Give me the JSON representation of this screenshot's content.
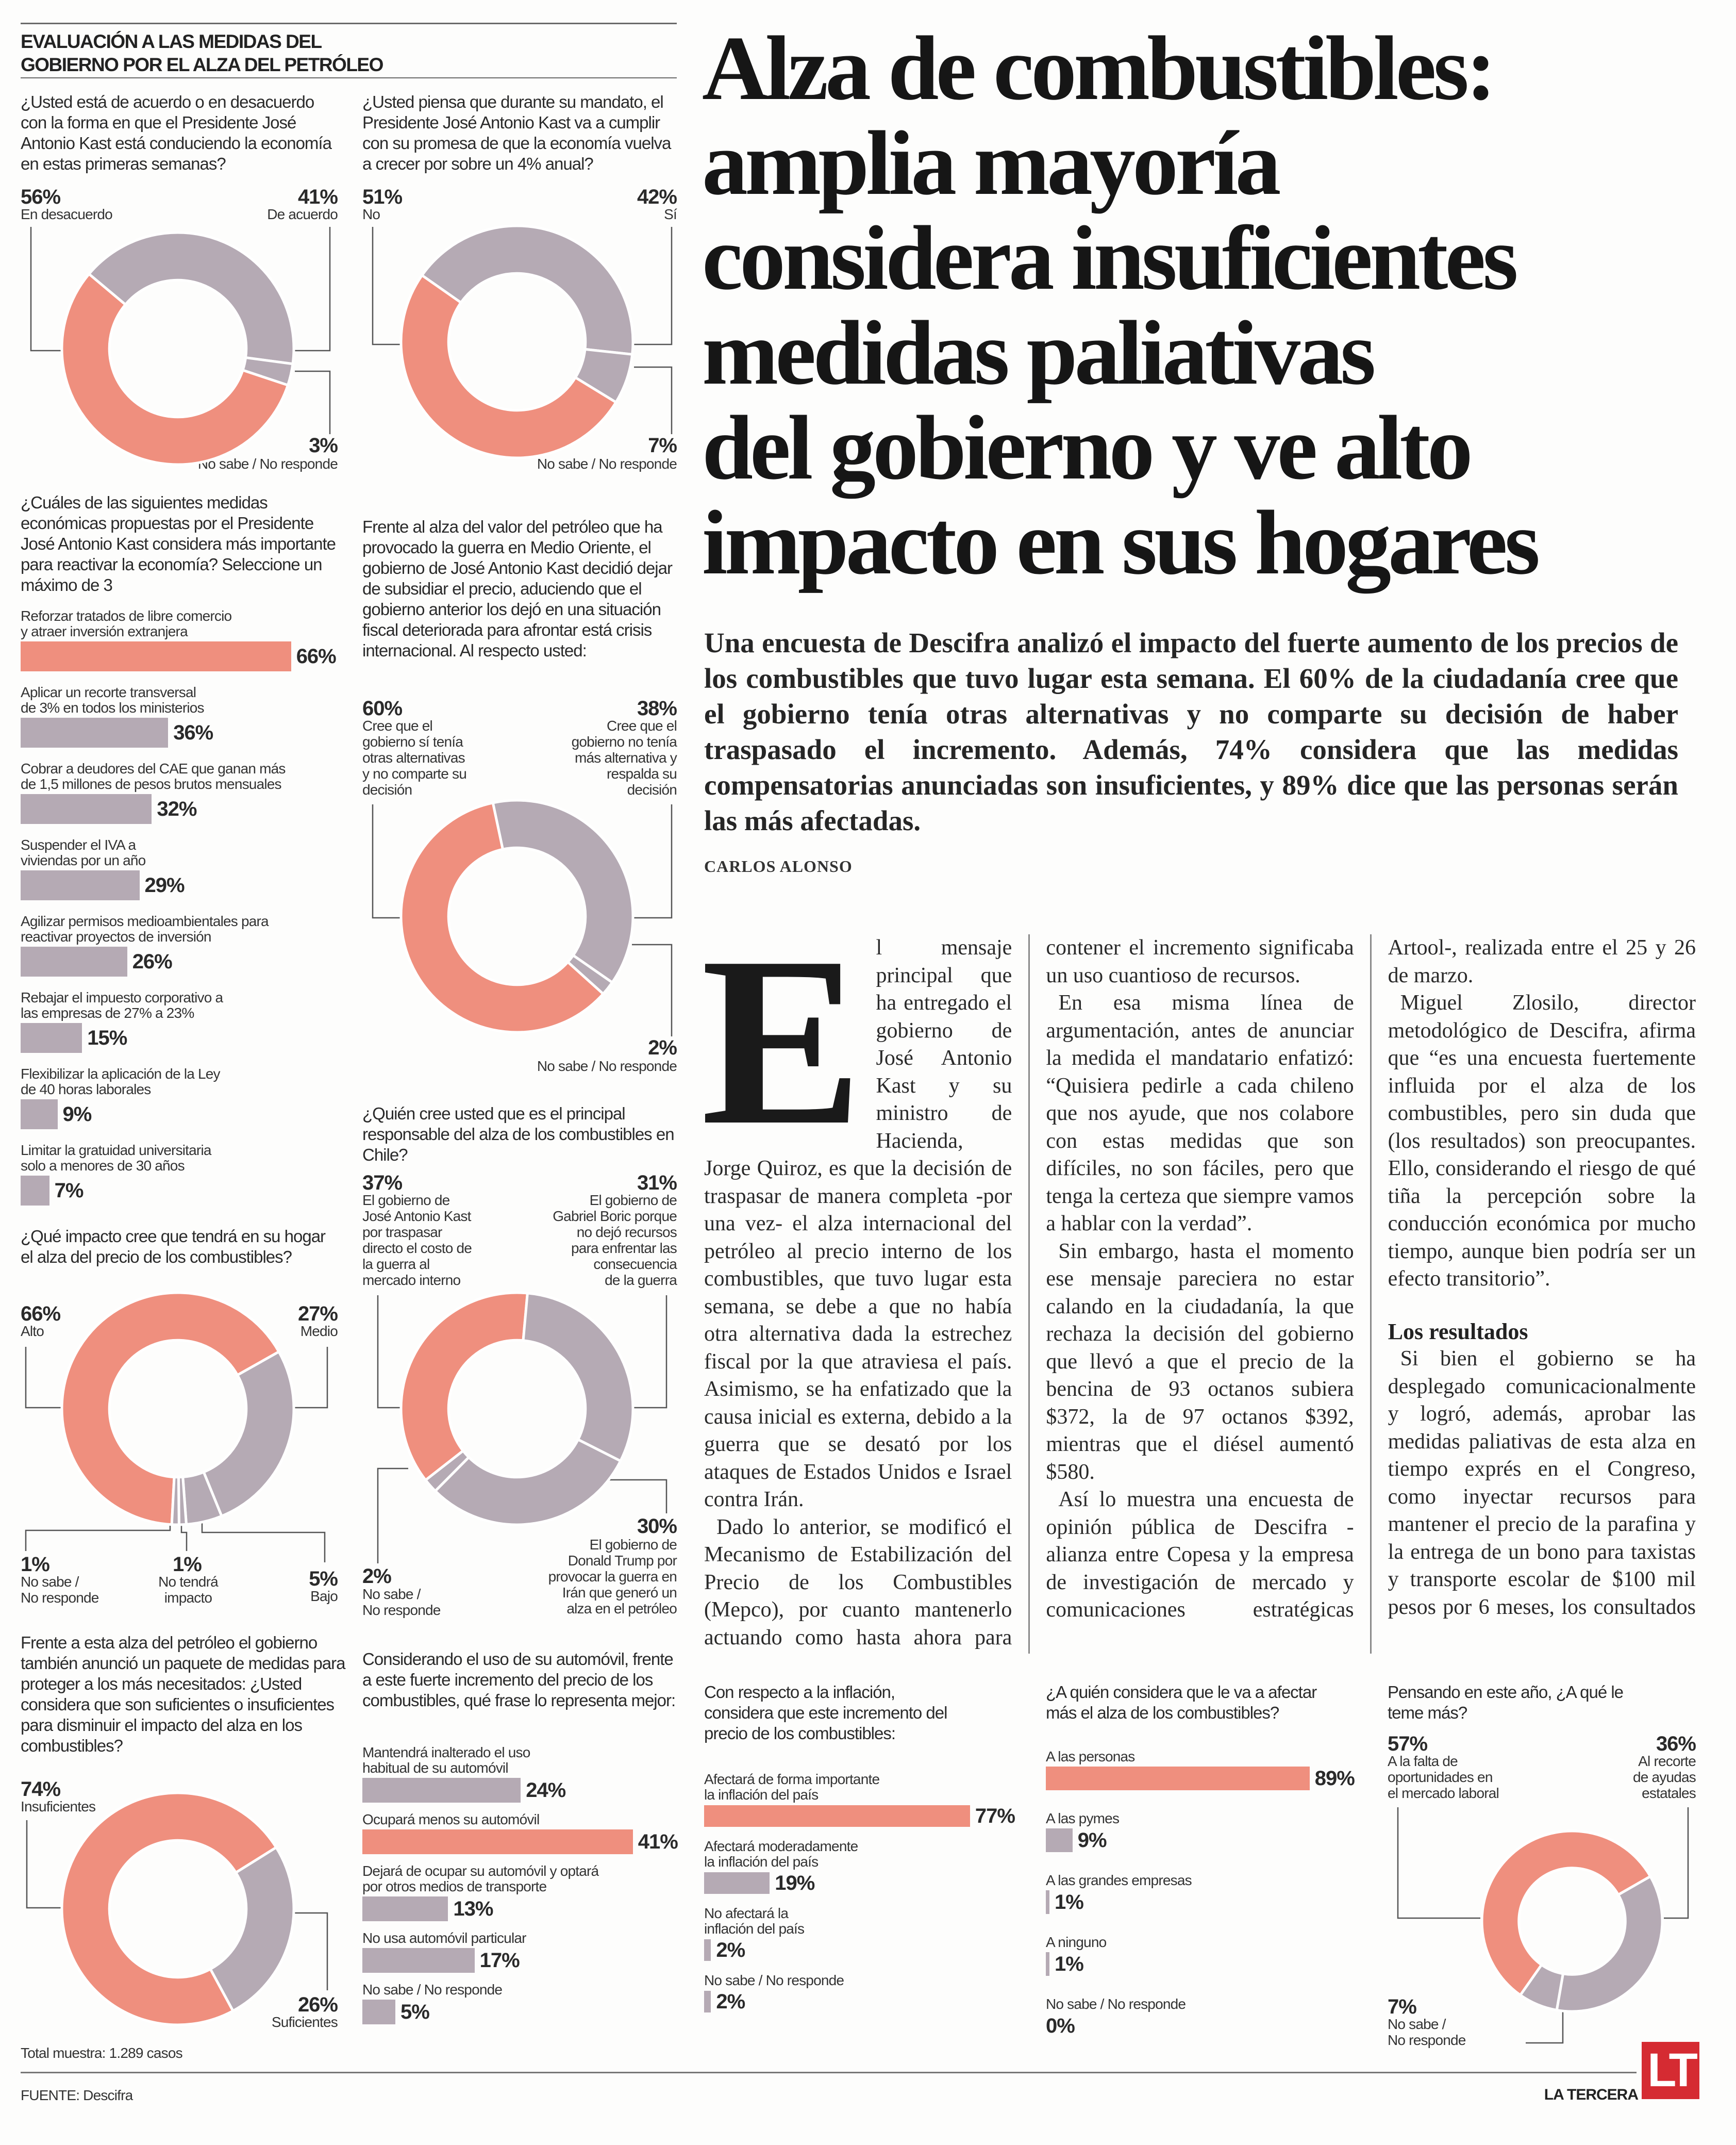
{
  "colors": {
    "highlight": "#ef8f7e",
    "neutral": "#b5aab4",
    "logo": "#d52b32"
  },
  "infographic": {
    "title_line1": "EVALUACIÓN A LAS MEDIDAS DEL",
    "title_line2": "GOBIERNO POR EL ALZA DEL PETRÓLEO",
    "total_muestra": "Total muestra: 1.289 casos",
    "fuente": "FUENTE: Descifra"
  },
  "chart_data": [
    {
      "type": "pie",
      "title": "¿Usted está de acuerdo o en desacuerdo con la forma en que el Presidente José Antonio Kast está conduciendo la economía en estas primeras semanas?",
      "categories": [
        "En desacuerdo",
        "De acuerdo",
        "No sabe / No responde"
      ],
      "values": [
        56,
        41,
        3
      ],
      "value_labels": [
        "56%",
        "41%",
        "3%"
      ]
    },
    {
      "type": "pie",
      "title": "¿Usted piensa que durante su mandato, el Presidente José Antonio Kast va a cumplir con su promesa de que la economía vuelva a crecer por sobre un 4% anual?",
      "categories": [
        "No",
        "Sí",
        "No sabe / No responde"
      ],
      "values": [
        51,
        42,
        7
      ],
      "value_labels": [
        "51%",
        "42%",
        "7%"
      ]
    },
    {
      "type": "bar",
      "title": "¿Cuáles de las siguientes medidas económicas propuestas por el Presidente José Antonio Kast considera más importante para reactivar la economía? Seleccione un máximo de 3",
      "categories": [
        "Reforzar tratados de libre comercio\ny atraer inversión extranjera",
        "Aplicar un recorte transversal\nde 3% en todos los ministerios",
        "Cobrar a deudores del CAE que ganan más\nde 1,5 millones de pesos brutos mensuales",
        "Suspender el IVA a\nviviendas por un año",
        "Agilizar permisos medioambientales para\nreactivar proyectos de inversión",
        "Rebajar el impuesto corporativo a\nlas empresas de 27% a 23%",
        "Flexibilizar la aplicación de la Ley\nde 40 horas laborales",
        "Limitar la gratuidad universitaria\nsolo a menores de 30 años"
      ],
      "values": [
        66,
        36,
        32,
        29,
        26,
        15,
        9,
        7
      ],
      "value_labels": [
        "66%",
        "36%",
        "32%",
        "29%",
        "26%",
        "15%",
        "9%",
        "7%"
      ]
    },
    {
      "type": "pie",
      "title": "Frente al alza del valor del petróleo que ha provocado la guerra en Medio Oriente, el gobierno de José Antonio Kast decidió dejar de subsidiar el precio, aduciendo que el gobierno anterior los dejó en una situación fiscal deteriorada para afrontar está crisis internacional. Al respecto usted:",
      "categories": [
        "Cree que el\ngobierno sí tenía\notras alternativas\ny no comparte su\ndecisión",
        "Cree que el\ngobierno no tenía\nmás alternativa y\nrespalda su\ndecisión",
        "No sabe / No responde"
      ],
      "values": [
        60,
        38,
        2
      ],
      "value_labels": [
        "60%",
        "38%",
        "2%"
      ]
    },
    {
      "type": "pie",
      "title": "¿Quién cree usted que es el principal responsable del alza de los combustibles en Chile?",
      "categories": [
        "El gobierno de\nJosé Antonio Kast\npor traspasar\ndirecto el costo de\nla guerra al\nmercado interno",
        "El gobierno de\nGabriel Boric porque\nno dejó recursos\npara enfrentar las\nconsecuencia\nde la guerra",
        "El gobierno de\nDonald Trump por\nprovocar la guerra en\nIrán que generó un\nalza en el petróleo",
        "No sabe /\nNo responde"
      ],
      "values": [
        37,
        31,
        30,
        2
      ],
      "value_labels": [
        "37%",
        "31%",
        "30%",
        "2%"
      ]
    },
    {
      "type": "pie",
      "title": "¿Qué impacto cree que tendrá en su hogar el alza del precio de los combustibles?",
      "categories": [
        "Alto",
        "Medio",
        "Bajo",
        "No tendrá\nimpacto",
        "No sabe /\nNo responde"
      ],
      "values": [
        66,
        27,
        5,
        1,
        1
      ],
      "value_labels": [
        "66%",
        "27%",
        "5%",
        "1%",
        "1%"
      ]
    },
    {
      "type": "pie",
      "title": "Frente a esta alza del petróleo el gobierno también anunció un paquete de medidas para proteger a los más necesitados: ¿Usted considera que son suficientes o insuficientes para disminuir el impacto del alza en los combustibles?",
      "categories": [
        "Insuficientes",
        "Suficientes"
      ],
      "values": [
        74,
        26
      ],
      "value_labels": [
        "74%",
        "26%"
      ]
    },
    {
      "type": "bar",
      "title": "Considerando el uso de su automóvil, frente a este fuerte incremento del precio de los combustibles, qué frase lo representa mejor:",
      "categories": [
        "Mantendrá inalterado el uso\nhabitual de su automóvil",
        "Ocupará menos su automóvil",
        "Dejará de ocupar su automóvil y optará\npor otros medios de transporte",
        "No usa automóvil particular",
        "No sabe / No responde"
      ],
      "values": [
        24,
        41,
        13,
        17,
        5
      ],
      "value_labels": [
        "24%",
        "41%",
        "13%",
        "17%",
        "5%"
      ]
    },
    {
      "type": "bar",
      "title": "Con respecto a la inflación, considera que este incremento del precio de los combustibles:",
      "categories": [
        "Afectará de forma importante\nla inflación del país",
        "Afectará moderadamente\nla inflación del país",
        "No afectará la\ninflación del país",
        "No sabe / No responde"
      ],
      "values": [
        77,
        19,
        2,
        2
      ],
      "value_labels": [
        "77%",
        "19%",
        "2%",
        "2%"
      ]
    },
    {
      "type": "bar",
      "title": "¿A quién considera que le va a afectar más el alza de los combustibles?",
      "categories": [
        "A las personas",
        "A las pymes",
        "A las grandes empresas",
        "A ninguno",
        "No sabe / No responde"
      ],
      "values": [
        89,
        9,
        1,
        1,
        0
      ],
      "value_labels": [
        "89%",
        "9%",
        "1%",
        "1%",
        "0%"
      ]
    },
    {
      "type": "pie",
      "title": "Pensando en este año, ¿A qué le teme más?",
      "categories": [
        "A la falta de\noportunidades en\nel mercado laboral",
        "Al recorte\nde ayudas\nestatales",
        "No sabe /\nNo responde"
      ],
      "values": [
        57,
        36,
        7
      ],
      "value_labels": [
        "57%",
        "36%",
        "7%"
      ]
    }
  ],
  "article": {
    "headline_lines": [
      "Alza de combustibles:",
      "amplia mayoría",
      "considera insuficientes",
      "medidas paliativas",
      "del gobierno y ve alto",
      "impacto en sus hogares"
    ],
    "deck": "Una encuesta de Descifra analizó el impacto del fuerte aumento de los precios de los combustibles que tuvo lugar esta semana. El 60% de la ciudadanía cree que el gobierno tenía otras alternativas y no comparte su decisión de haber traspasado el incremento. Además, 74% considera que las medidas compensatorias anunciadas son insuficientes, y 89% dice que las personas serán las más afectadas.",
    "byline": "CARLOS ALONSO",
    "drop_cap": "E",
    "paragraphs": [
      "l mensaje principal que ha entregado el gobierno de José Antonio Kast y su ministro de Hacienda, Jorge Quiroz, es que la decisión de traspasar de manera completa -por una vez- el alza internacional del petróleo al precio interno de los combustibles, que tuvo lugar esta semana, se debe a que no había otra alternativa dada la estrechez fiscal por la que atraviesa el país. Asimismo, se ha enfatizado que la causa inicial es externa, debido a la guerra que se desató por los ataques de Estados Unidos e Israel contra Irán.",
      "Dado lo anterior, se modificó el Mecanismo de Estabilización del Precio de los Combustibles (Mepco), por cuanto mantenerlo actuando como hasta ahora para contener el incremento significaba un uso cuantioso de recursos.",
      "En esa misma línea de argumentación, antes de anunciar la medida el mandatario enfatizó: “Quisiera pedirle a cada chileno que nos ayude, que nos colabore con estas medidas que son difíciles, no son fáciles, pero que tenga la certeza que siempre vamos a hablar con la verdad”.",
      "Sin embargo, hasta el momento ese mensaje pareciera no estar calando en la ciudadanía, la que rechaza la decisión del gobierno que llevó a que el precio de la bencina de 93 octanos subiera $372, la de 97 octanos $392, mientras que el diésel aumentó $580.",
      "Así lo muestra una encuesta de opinión pública de Descifra -alianza entre Copesa y la empresa de investigación de mercado y comunicaciones estratégicas Artool-, realizada entre el 25 y 26 de marzo.",
      "Miguel Zlosilo, director metodológico de Descifra, afirma que “es una encuesta fuertemente influida por el alza de los combustibles, pero sin duda que (los resultados) son preocupantes. Ello, considerando el riesgo de qué tiña la percepción sobre la conducción económica por mucho tiempo, aunque bien podría ser un efecto transitorio”."
    ],
    "subhead": "Los resultados",
    "paragraphs_after": [
      "Si bien el gobierno se ha desplegado comunicacionalmente y logró, además, aprobar las medidas paliativas de esta alza en tiempo exprés en el Congreso, como inyectar recursos para mantener el precio de la parafina y la entrega de un bono para taxistas y transporte escolar de $100 mil pesos por 6 meses, los consultados se mostraron contrarios a los anuncios y ven que el aumento"
    ]
  },
  "brand": {
    "name": "LA TERCERA",
    "logo": "LT"
  }
}
